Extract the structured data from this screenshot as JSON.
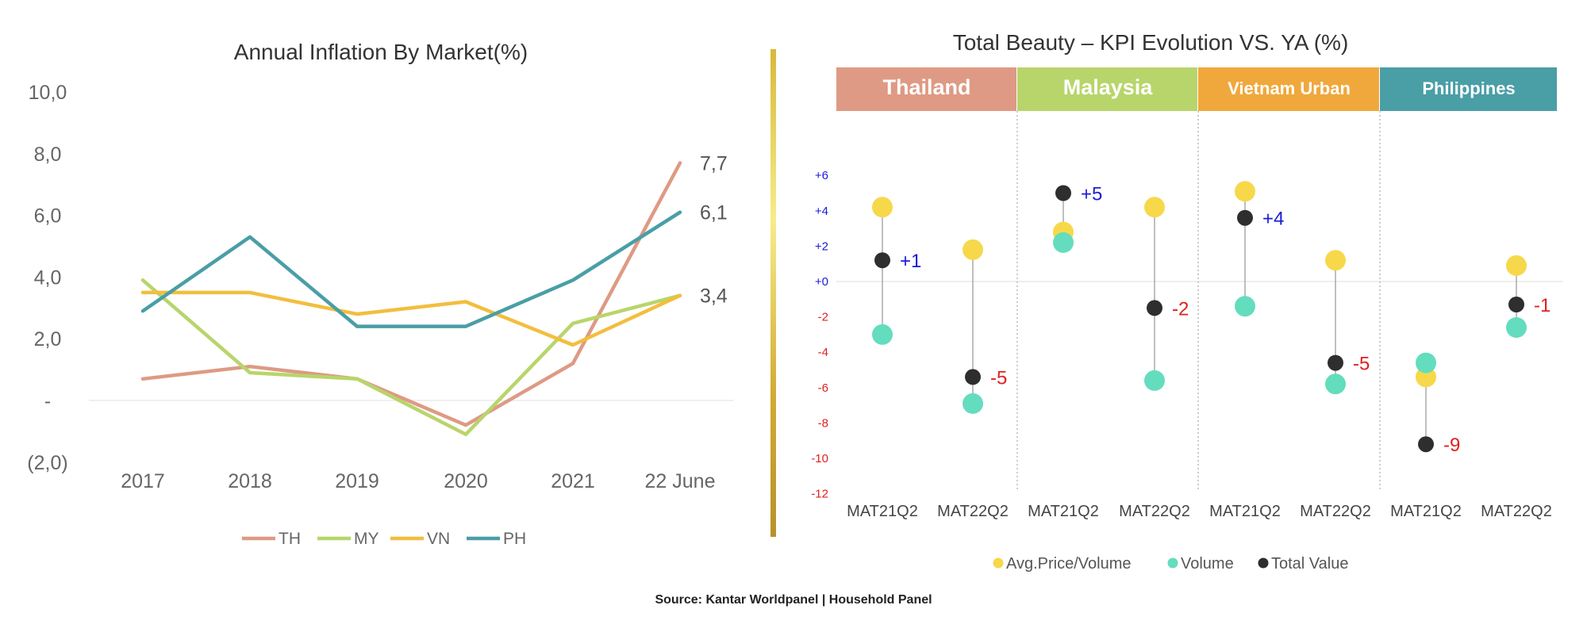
{
  "colors": {
    "th": "#DE9A84",
    "my": "#B8D56B",
    "vn": "#F2BE3E",
    "ph": "#4A9EA6",
    "avg_price": "#F7D84A",
    "volume": "#63DDBE",
    "total_value": "#2E2E2E",
    "positive_label": "#1B1BD6",
    "negative_label": "#E02020",
    "divider_gold": "#C9A227"
  },
  "chart_data": [
    {
      "type": "line",
      "title": "Annual Inflation By Market(%)",
      "categories": [
        "2017",
        "2018",
        "2019",
        "2020",
        "2021",
        "22 June"
      ],
      "ylim": [
        -2,
        10
      ],
      "yticks": [
        {
          "value": 10,
          "label": "10,0"
        },
        {
          "value": 8,
          "label": "8,0"
        },
        {
          "value": 6,
          "label": "6,0"
        },
        {
          "value": 4,
          "label": "4,0"
        },
        {
          "value": 2,
          "label": "2,0"
        },
        {
          "value": 0,
          "label": "-"
        },
        {
          "value": -2,
          "label": "(2,0)"
        }
      ],
      "series": [
        {
          "name": "TH",
          "color": "#DE9A84",
          "values": [
            0.7,
            1.1,
            0.7,
            -0.8,
            1.2,
            7.7
          ]
        },
        {
          "name": "MY",
          "color": "#B8D56B",
          "values": [
            3.9,
            0.9,
            0.7,
            -1.1,
            2.5,
            3.4
          ]
        },
        {
          "name": "VN",
          "color": "#F2BE3E",
          "values": [
            3.5,
            3.5,
            2.8,
            3.2,
            1.8,
            3.4
          ]
        },
        {
          "name": "PH",
          "color": "#4A9EA6",
          "values": [
            2.9,
            5.3,
            2.4,
            2.4,
            3.9,
            6.1
          ]
        }
      ],
      "end_labels": [
        {
          "value": 7.7,
          "label": "7,7"
        },
        {
          "value": 6.1,
          "label": "6,1"
        },
        {
          "value": 3.4,
          "label": "3,4"
        }
      ],
      "legend": "bottom-center"
    },
    {
      "type": "scatter",
      "title": "Total Beauty – KPI Evolution VS. YA (%)",
      "ylim": [
        -12,
        6
      ],
      "yticks": [
        {
          "value": 6,
          "label": "+6"
        },
        {
          "value": 4,
          "label": "+4"
        },
        {
          "value": 2,
          "label": "+2"
        },
        {
          "value": 0,
          "label": "+0"
        },
        {
          "value": -2,
          "label": "-2"
        },
        {
          "value": -4,
          "label": "-4"
        },
        {
          "value": -6,
          "label": "-6"
        },
        {
          "value": -8,
          "label": "-8"
        },
        {
          "value": -10,
          "label": "-10"
        },
        {
          "value": -12,
          "label": "-12"
        }
      ],
      "groups": [
        {
          "name": "Thailand",
          "color": "#DE9A84"
        },
        {
          "name": "Malaysia",
          "color": "#B8D56B"
        },
        {
          "name": "Vietnam Urban",
          "color": "#F0A83C"
        },
        {
          "name": "Philippines",
          "color": "#4A9EA6"
        }
      ],
      "categories": [
        "MAT21Q2",
        "MAT22Q2",
        "MAT21Q2",
        "MAT22Q2",
        "MAT21Q2",
        "MAT22Q2",
        "MAT21Q2",
        "MAT22Q2"
      ],
      "series": [
        {
          "name": "Avg.Price/Volume",
          "color": "#F7D84A",
          "values": [
            4.2,
            1.8,
            2.8,
            4.2,
            5.1,
            1.2,
            -5.4,
            0.9
          ]
        },
        {
          "name": "Volume",
          "color": "#63DDBE",
          "values": [
            -3.0,
            -6.9,
            2.2,
            -5.6,
            -1.4,
            -5.8,
            -4.6,
            -2.6
          ]
        },
        {
          "name": "Total Value",
          "color": "#2E2E2E",
          "values": [
            1.2,
            -5.4,
            5.0,
            -1.5,
            3.6,
            -4.6,
            -9.2,
            -1.3
          ]
        }
      ],
      "value_labels": [
        "+1",
        "-5",
        "+5",
        "-2",
        "+4",
        "-5",
        "-9",
        "-1"
      ],
      "legend": "bottom-center"
    }
  ],
  "footer": {
    "source": "Source: Kantar Worldpanel | Household Panel"
  }
}
